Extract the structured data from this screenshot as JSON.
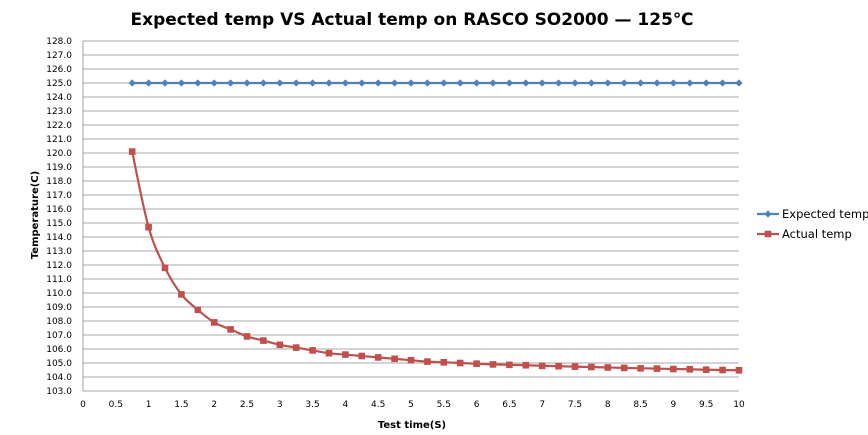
{
  "chart_data": {
    "type": "line",
    "title": "Expected temp VS Actual temp on RASCO SO2000  —  125℃",
    "xlabel": "Test time(S)",
    "ylabel": "Temperature(C)",
    "xlim": [
      0,
      10
    ],
    "ylim": [
      103.0,
      128.0
    ],
    "x_ticks": [
      "0",
      "0.5",
      "1",
      "1.5",
      "2",
      "2.5",
      "3",
      "3.5",
      "4",
      "4.5",
      "5",
      "5.5",
      "6",
      "6.5",
      "7",
      "7.5",
      "8",
      "8.5",
      "9",
      "9.5",
      "10"
    ],
    "y_ticks": [
      "103.0",
      "104.0",
      "105.0",
      "106.0",
      "107.0",
      "108.0",
      "109.0",
      "110.0",
      "111.0",
      "112.0",
      "113.0",
      "114.0",
      "115.0",
      "116.0",
      "117.0",
      "118.0",
      "119.0",
      "120.0",
      "121.0",
      "122.0",
      "123.0",
      "124.0",
      "125.0",
      "126.0",
      "127.0",
      "128.0"
    ],
    "grid": true,
    "legend_position": "right",
    "x": [
      0.75,
      1.0,
      1.25,
      1.5,
      1.75,
      2.0,
      2.25,
      2.5,
      2.75,
      3.0,
      3.25,
      3.5,
      3.75,
      4.0,
      4.25,
      4.5,
      4.75,
      5.0,
      5.25,
      5.5,
      5.75,
      6.0,
      6.25,
      6.5,
      6.75,
      7.0,
      7.25,
      7.5,
      7.75,
      8.0,
      8.25,
      8.5,
      8.75,
      9.0,
      9.25,
      9.5,
      9.75,
      10.0
    ],
    "series": [
      {
        "name": "Expected temp",
        "color": "#4f81bd",
        "marker": "diamond",
        "values": [
          125.0,
          125.0,
          125.0,
          125.0,
          125.0,
          125.0,
          125.0,
          125.0,
          125.0,
          125.0,
          125.0,
          125.0,
          125.0,
          125.0,
          125.0,
          125.0,
          125.0,
          125.0,
          125.0,
          125.0,
          125.0,
          125.0,
          125.0,
          125.0,
          125.0,
          125.0,
          125.0,
          125.0,
          125.0,
          125.0,
          125.0,
          125.0,
          125.0,
          125.0,
          125.0,
          125.0,
          125.0,
          125.0
        ]
      },
      {
        "name": "Actual temp",
        "color": "#c0504d",
        "marker": "square",
        "values": [
          120.1,
          114.7,
          111.8,
          109.9,
          108.8,
          107.9,
          107.4,
          106.9,
          106.6,
          106.3,
          106.1,
          105.9,
          105.7,
          105.6,
          105.5,
          105.4,
          105.3,
          105.2,
          105.1,
          105.05,
          105.0,
          104.95,
          104.9,
          104.87,
          104.84,
          104.8,
          104.77,
          104.74,
          104.71,
          104.68,
          104.65,
          104.62,
          104.6,
          104.57,
          104.55,
          104.52,
          104.5,
          104.48
        ]
      }
    ]
  }
}
